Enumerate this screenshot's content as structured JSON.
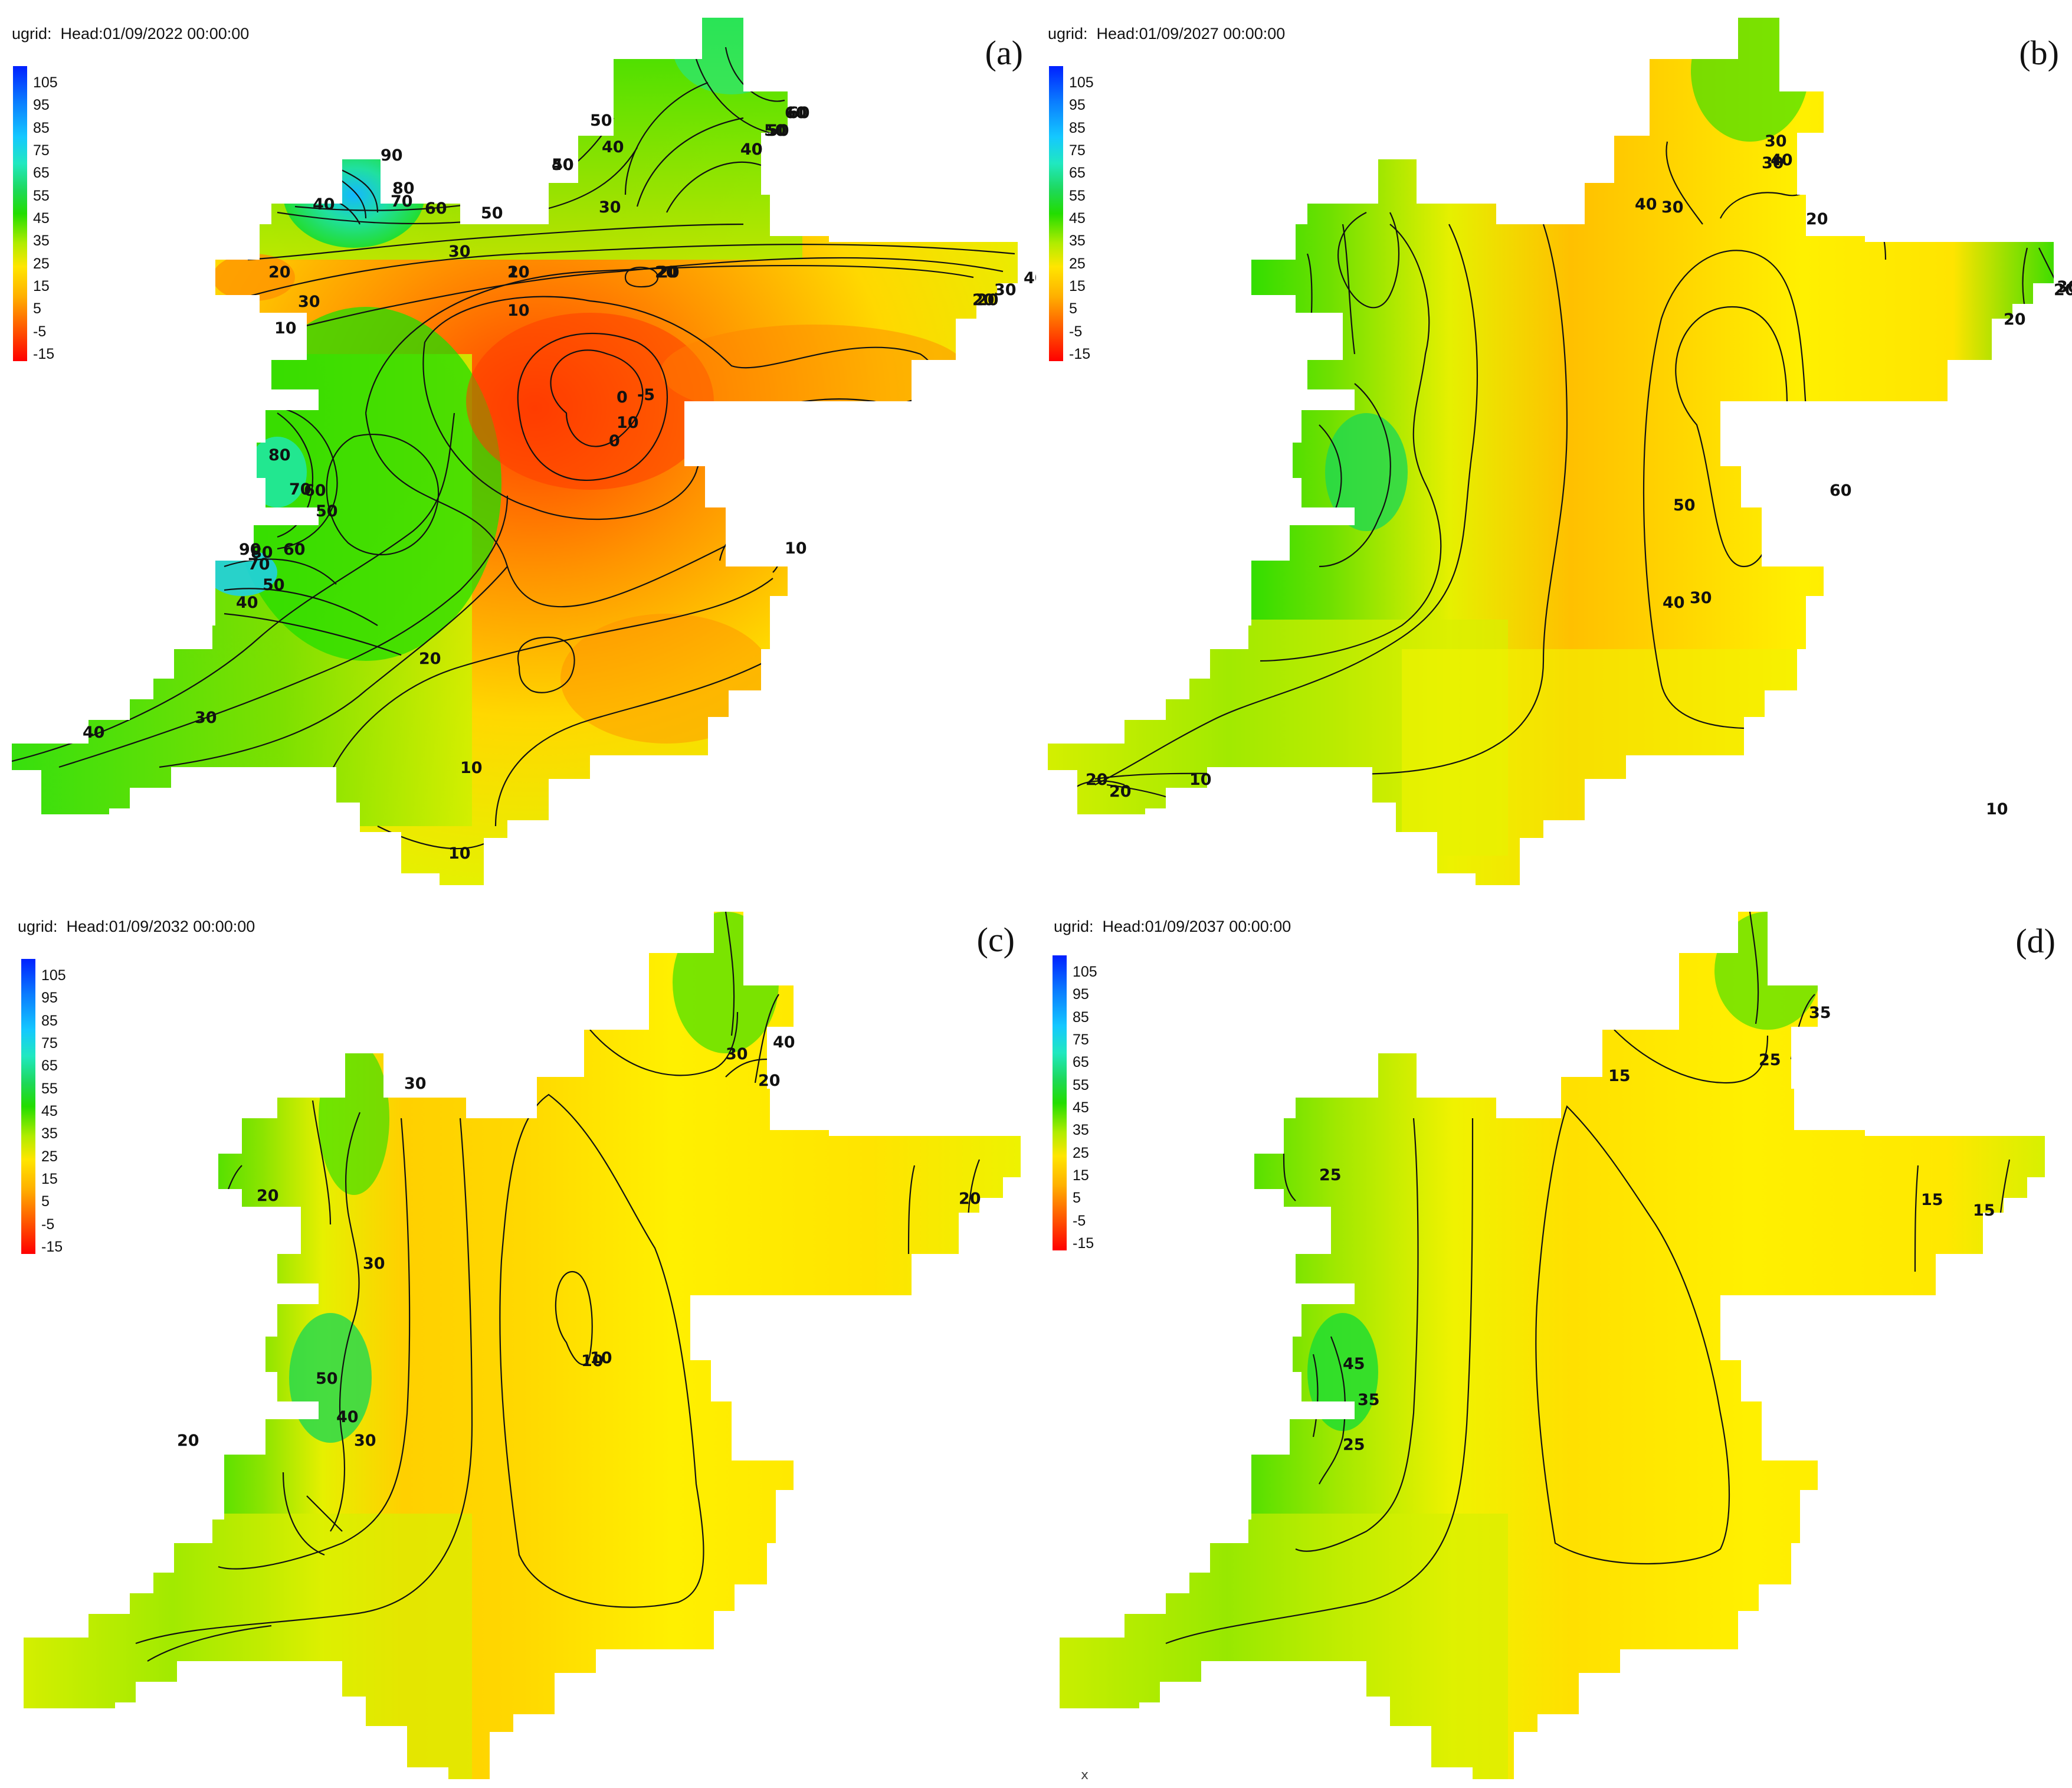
{
  "colorbar": {
    "ticks": [
      "105",
      "95",
      "85",
      "75",
      "65",
      "55",
      "45",
      "35",
      "25",
      "15",
      "5",
      "-5",
      "-15"
    ],
    "colors": [
      "#0020ff",
      "#0a7cff",
      "#14c8ff",
      "#20e8c0",
      "#1ed85a",
      "#22dd00",
      "#7fe000",
      "#d8f000",
      "#ffe000",
      "#ffb000",
      "#ff7800",
      "#ff3c00",
      "#ff0000"
    ]
  },
  "panels": [
    {
      "id": "a",
      "title": "ugrid:  Head:01/09/2022 00:00:00",
      "letter": "(a)",
      "fill": "mixed",
      "contour_labels": [
        "90",
        "80",
        "70",
        "60",
        "50",
        "40",
        "30",
        "20",
        "10",
        "0",
        "-5",
        "90",
        "80",
        "70",
        "60",
        "50",
        "40",
        "30",
        "20",
        "10",
        "60",
        "50",
        "40",
        "50",
        "50",
        "40",
        "30",
        "20",
        "10",
        "20",
        "20",
        "30",
        "40",
        "20",
        "10",
        "0",
        "10",
        "10",
        "10",
        "30",
        "40",
        "80",
        "70",
        "60",
        "50",
        "40",
        "60",
        "50",
        "40",
        "20"
      ]
    },
    {
      "id": "b",
      "title": "ugrid:  Head:01/09/2027 00:00:00",
      "letter": "(b)",
      "fill": "smooth",
      "contour_labels": [
        "30",
        "40",
        "30",
        "40",
        "30",
        "20",
        "20",
        "20",
        "30",
        "60",
        "50",
        "40",
        "30",
        "10",
        "10",
        "20",
        "20"
      ]
    },
    {
      "id": "c",
      "title": "ugrid:  Head:01/09/2032 00:00:00",
      "letter": "(c)",
      "fill": "smooth",
      "contour_labels": [
        "40",
        "30",
        "20",
        "30",
        "20",
        "20",
        "30",
        "50",
        "40",
        "30",
        "10",
        "10",
        "20"
      ]
    },
    {
      "id": "d",
      "title": "ugrid:  Head:01/09/2037 00:00:00",
      "letter": "(d)",
      "fill": "smooth",
      "contour_labels": [
        "35",
        "25",
        "15",
        "25",
        "15",
        "15",
        "45",
        "35",
        "25"
      ]
    }
  ],
  "footer_mark": "x"
}
